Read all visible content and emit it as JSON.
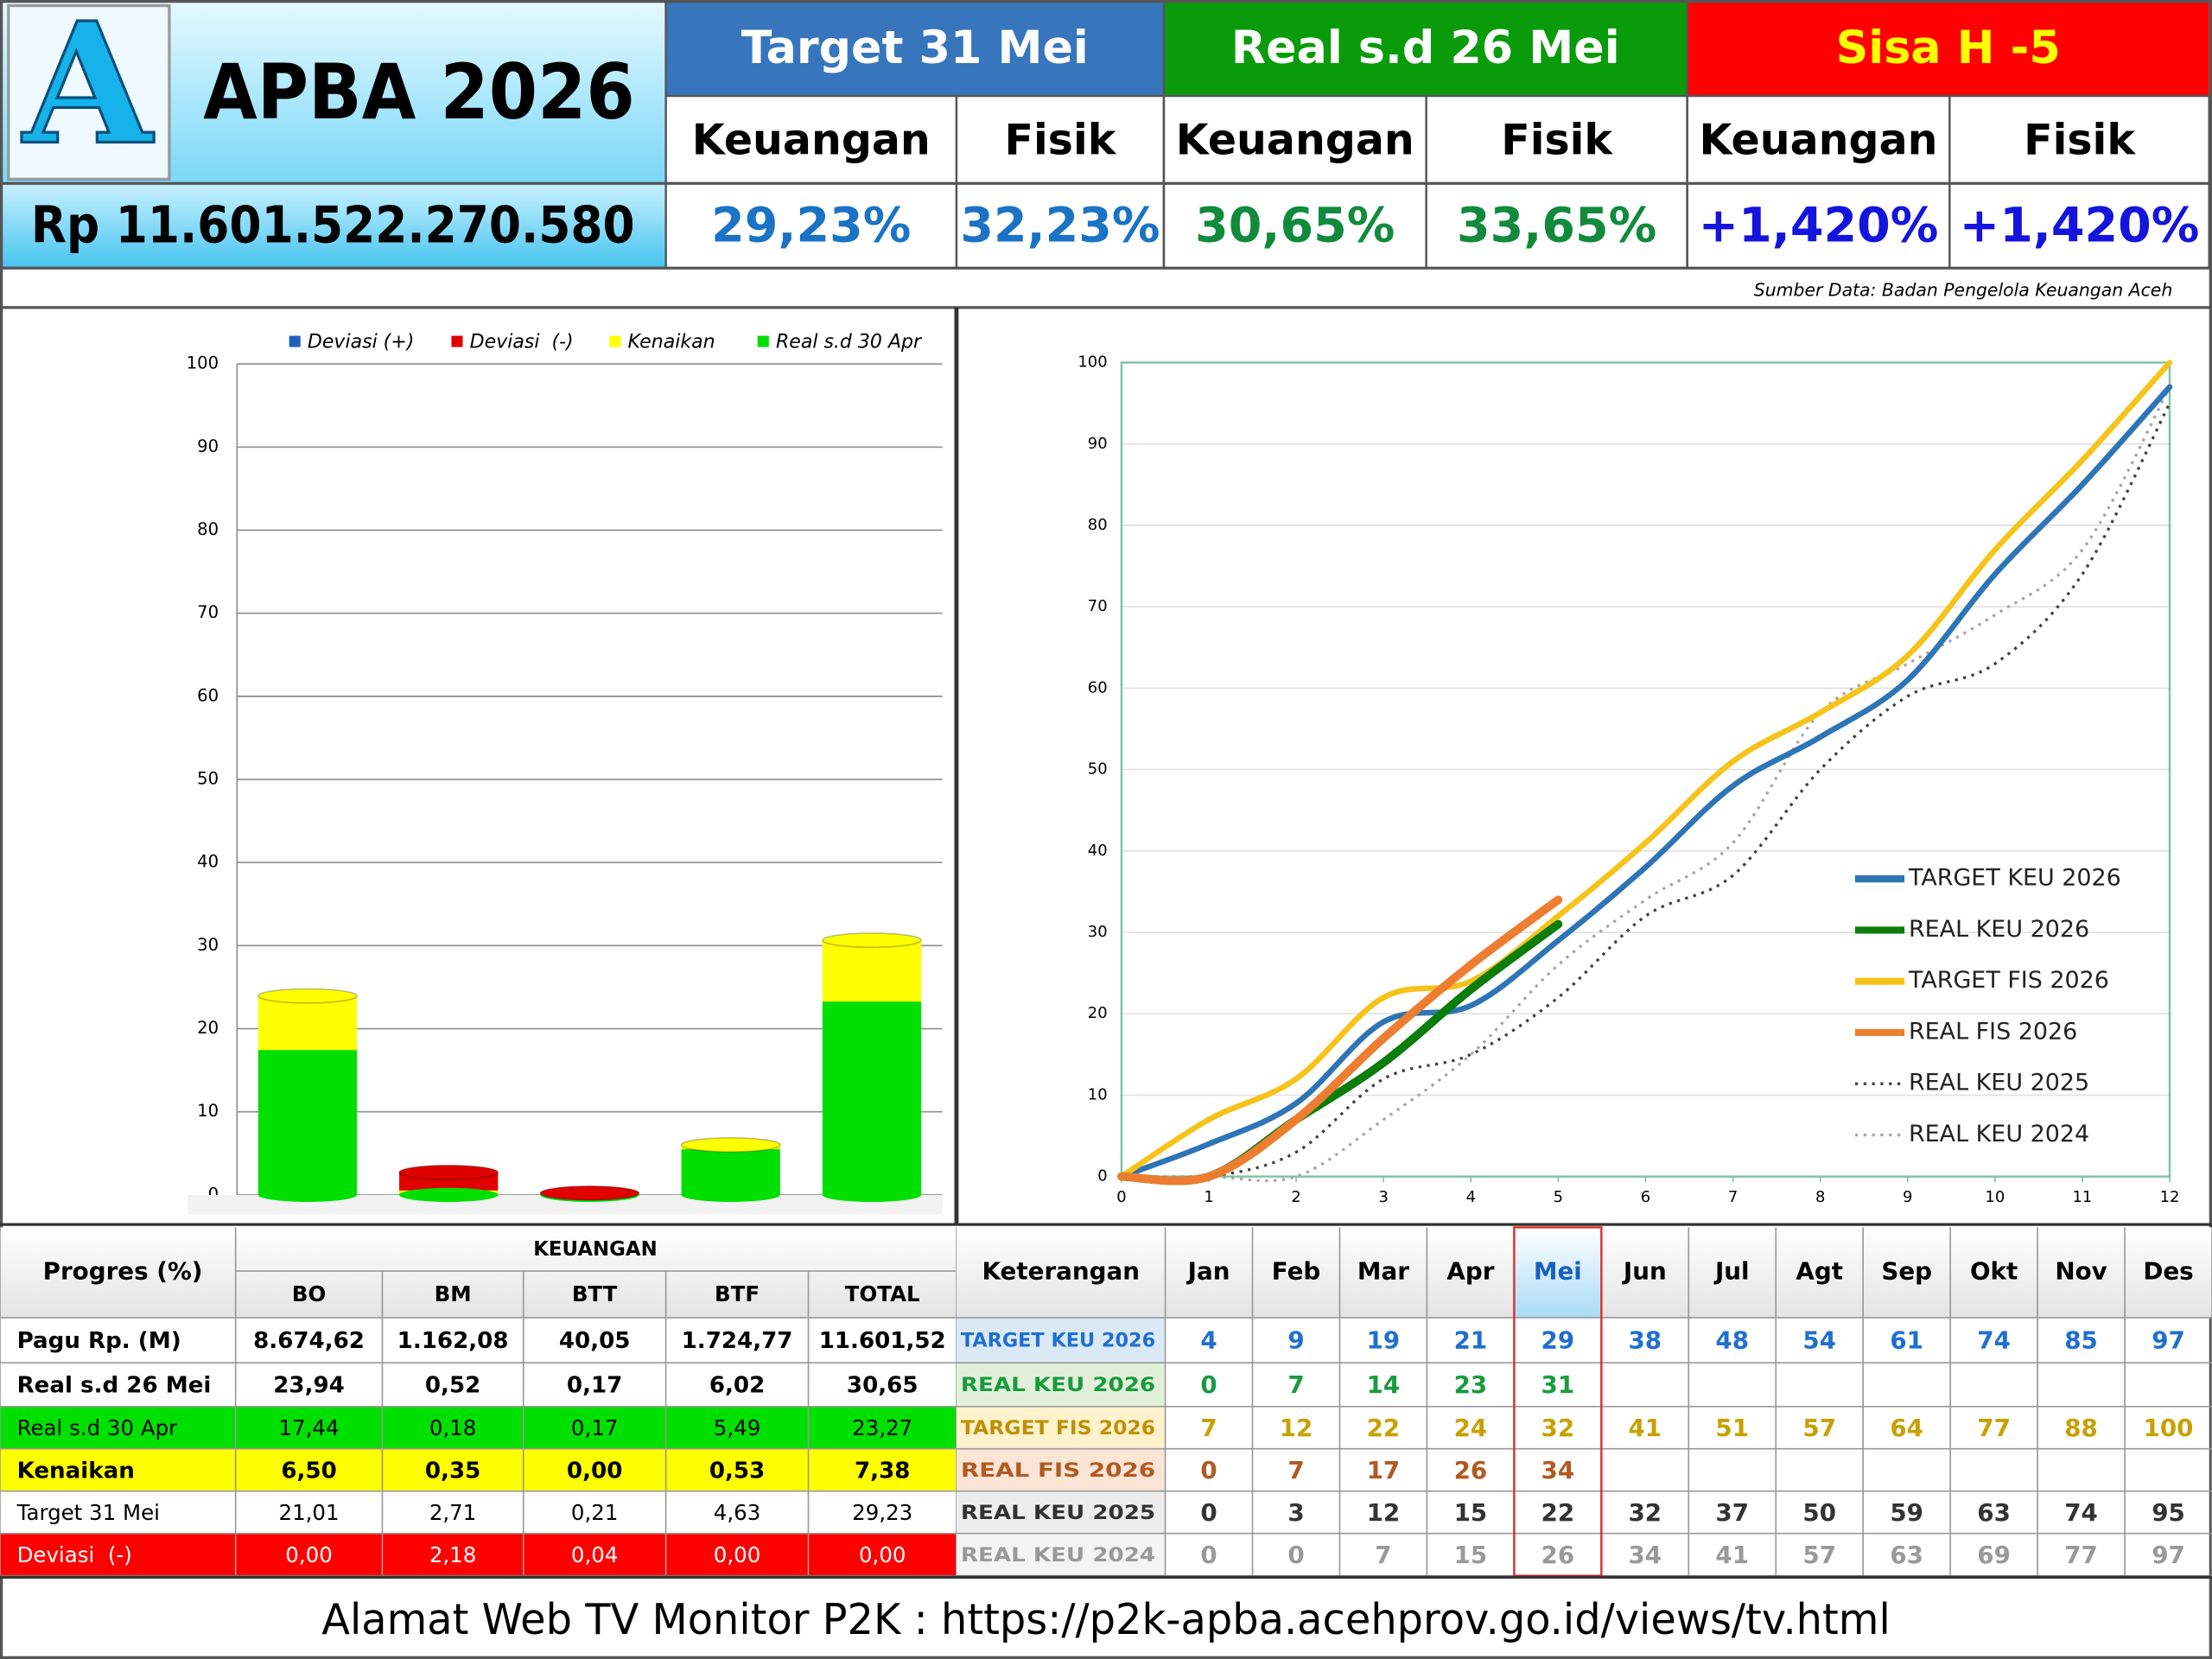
{
  "header": {
    "logo": "A",
    "title": "APBA 2026",
    "pagu": "Rp 11.601.522.270.580",
    "groups": [
      {
        "title": "Target 31 Mei",
        "columns": [
          "Keuangan",
          "Fisik"
        ],
        "values": [
          "29,23%",
          "32,23%"
        ]
      },
      {
        "title": "Real s.d 26 Mei",
        "columns": [
          "Keuangan",
          "Fisik"
        ],
        "values": [
          "30,65%",
          "33,65%"
        ]
      },
      {
        "title": "Sisa H -5",
        "columns": [
          "Keuangan",
          "Fisik"
        ],
        "values": [
          "+1,420%",
          "+1,420%"
        ]
      }
    ],
    "source": "Sumber Data: Badan Pengelola Keuangan Aceh"
  },
  "chart_data": [
    {
      "type": "bar",
      "stacked": true,
      "categories": [
        null,
        null,
        null,
        null,
        null
      ],
      "series": [
        {
          "name": "Deviasi (+)",
          "color": "#1f5fbf",
          "values": [
            0,
            0,
            0,
            0,
            0
          ]
        },
        {
          "name": "Deviasi  (-)",
          "color": "#e00000",
          "values": [
            0,
            2.18,
            0.04,
            0,
            0
          ]
        },
        {
          "name": "Kenaikan",
          "color": "#ffff00",
          "values": [
            6.5,
            0.35,
            0,
            0.53,
            7.38
          ]
        },
        {
          "name": "Real s.d 30 Apr",
          "color": "#00e000",
          "values": [
            17.44,
            0.18,
            0.17,
            5.49,
            23.27
          ]
        }
      ],
      "ylim": [
        0,
        100
      ],
      "yticks": [
        0,
        10,
        20,
        30,
        40,
        50,
        60,
        70,
        80,
        90,
        100
      ],
      "grid": true,
      "legend": "top"
    },
    {
      "type": "line",
      "x": [
        0,
        1,
        2,
        3,
        4,
        5,
        6,
        7,
        8,
        9,
        10,
        11,
        12
      ],
      "series": [
        {
          "name": "TARGET KEU 2026",
          "color": "#2e75b6",
          "style": "solid",
          "values": [
            0,
            4,
            9,
            19,
            21,
            29,
            38,
            48,
            54,
            61,
            74,
            85,
            97
          ]
        },
        {
          "name": "REAL KEU 2026",
          "color": "#0a7d0a",
          "style": "solid",
          "values": [
            0,
            0,
            7,
            14,
            23,
            31,
            null,
            null,
            null,
            null,
            null,
            null,
            null
          ]
        },
        {
          "name": "TARGET FIS 2026",
          "color": "#f5c31a",
          "style": "solid",
          "values": [
            0,
            7,
            12,
            22,
            24,
            32,
            41,
            51,
            57,
            64,
            77,
            88,
            100
          ]
        },
        {
          "name": "REAL FIS 2026",
          "color": "#ed7d31",
          "style": "solid",
          "values": [
            0,
            0,
            7,
            17,
            26,
            34,
            null,
            null,
            null,
            null,
            null,
            null,
            null
          ]
        },
        {
          "name": "REAL KEU 2025",
          "color": "#404040",
          "style": "dotted",
          "values": [
            0,
            0,
            3,
            12,
            15,
            22,
            32,
            37,
            50,
            59,
            63,
            74,
            95
          ]
        },
        {
          "name": "REAL KEU 2024",
          "color": "#a6a6a6",
          "style": "dotted",
          "values": [
            0,
            0,
            0,
            7,
            15,
            26,
            34,
            41,
            57,
            63,
            69,
            77,
            97
          ]
        }
      ],
      "xlim": [
        0,
        12
      ],
      "xticks": [
        0,
        1,
        2,
        3,
        4,
        5,
        6,
        7,
        8,
        9,
        10,
        11,
        12
      ],
      "ylim": [
        0,
        100
      ],
      "yticks": [
        0,
        10,
        20,
        30,
        40,
        50,
        60,
        70,
        80,
        90,
        100
      ],
      "grid": true,
      "legend": "lower right"
    }
  ],
  "progress_table": {
    "title": "Progres (%)",
    "group": "KEUANGAN",
    "columns": [
      "BO",
      "BM",
      "BTT",
      "BTF",
      "TOTAL"
    ],
    "rows": [
      {
        "label": "Pagu Rp. (M)",
        "values": [
          "8.674,62",
          "1.162,08",
          "40,05",
          "1.724,77",
          "11.601,52"
        ]
      },
      {
        "label": "Real s.d 26 Mei",
        "values": [
          "23,94",
          "0,52",
          "0,17",
          "6,02",
          "30,65"
        ]
      },
      {
        "label": "Real s.d 30 Apr",
        "values": [
          "17,44",
          "0,18",
          "0,17",
          "5,49",
          "23,27"
        ]
      },
      {
        "label": "Kenaikan",
        "values": [
          "6,50",
          "0,35",
          "0,00",
          "0,53",
          "7,38"
        ]
      },
      {
        "label": "Target 31 Mei",
        "values": [
          "21,01",
          "2,71",
          "0,21",
          "4,63",
          "29,23"
        ]
      },
      {
        "label": "Deviasi  (-)",
        "values": [
          "0,00",
          "2,18",
          "0,04",
          "0,00",
          "0,00"
        ]
      }
    ]
  },
  "monthly_table": {
    "title": "Keterangan",
    "columns": [
      "Jan",
      "Feb",
      "Mar",
      "Apr",
      "Mei",
      "Jun",
      "Jul",
      "Agt",
      "Sep",
      "Okt",
      "Nov",
      "Des"
    ],
    "rows": [
      {
        "label": "TARGET KEU 2026",
        "values": [
          4,
          9,
          19,
          21,
          29,
          38,
          48,
          54,
          61,
          74,
          85,
          97
        ]
      },
      {
        "label": "REAL KEU 2026",
        "values": [
          0,
          7,
          14,
          23,
          31,
          null,
          null,
          null,
          null,
          null,
          null,
          null
        ]
      },
      {
        "label": "TARGET FIS 2026",
        "values": [
          7,
          12,
          22,
          24,
          32,
          41,
          51,
          57,
          64,
          77,
          88,
          100
        ]
      },
      {
        "label": "REAL FIS 2026",
        "values": [
          0,
          7,
          17,
          26,
          34,
          null,
          null,
          null,
          null,
          null,
          null,
          null
        ]
      },
      {
        "label": "REAL KEU 2025",
        "values": [
          0,
          3,
          12,
          15,
          22,
          32,
          37,
          50,
          59,
          63,
          74,
          95
        ]
      },
      {
        "label": "REAL KEU 2024",
        "values": [
          0,
          0,
          7,
          15,
          26,
          34,
          41,
          57,
          63,
          69,
          77,
          97
        ]
      }
    ]
  },
  "footer": "Alamat Web TV Monitor P2K : https://p2k-apba.acehprov.go.id/views/tv.html"
}
